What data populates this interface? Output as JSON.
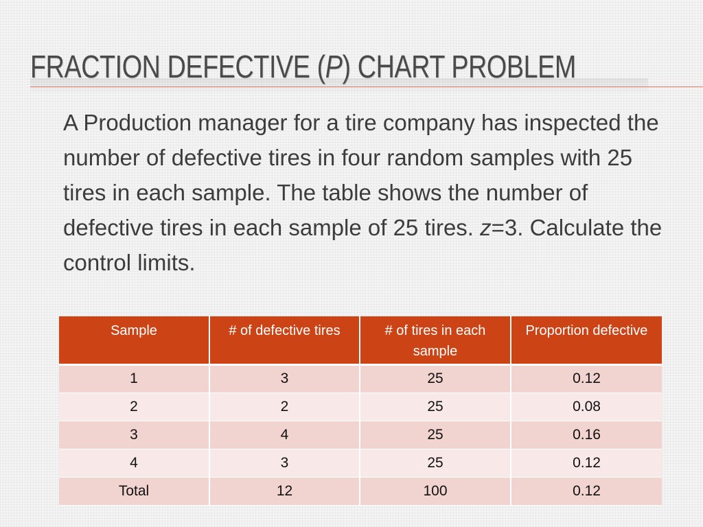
{
  "title": {
    "before": "FRACTION DEFECTIVE (",
    "italic": "P",
    "after": ") CHART PROBLEM"
  },
  "body": {
    "text_part1": "A Production manager for a tire company has inspected the number of defective tires in four random samples with 25 tires in each sample. The table shows the number of defective tires in each sample of 25 tires.  ",
    "z_symbol": "z",
    "text_part2": "=3.  Calculate the control limits."
  },
  "table": {
    "headers": [
      "Sample",
      "# of defective tires",
      "# of tires in each sample",
      "Proportion defective"
    ],
    "rows": [
      [
        "1",
        "3",
        "25",
        "0.12"
      ],
      [
        "2",
        "2",
        "25",
        "0.08"
      ],
      [
        "3",
        "4",
        "25",
        "0.16"
      ],
      [
        "4",
        "3",
        "25",
        "0.12"
      ]
    ],
    "total": [
      "Total",
      "12",
      "100",
      "0.12"
    ]
  },
  "colors": {
    "header_bg": "#cc4316",
    "row_dark": "#f1d3d0",
    "row_light": "#f8e9e8",
    "title_rule": "#e07b5f"
  }
}
